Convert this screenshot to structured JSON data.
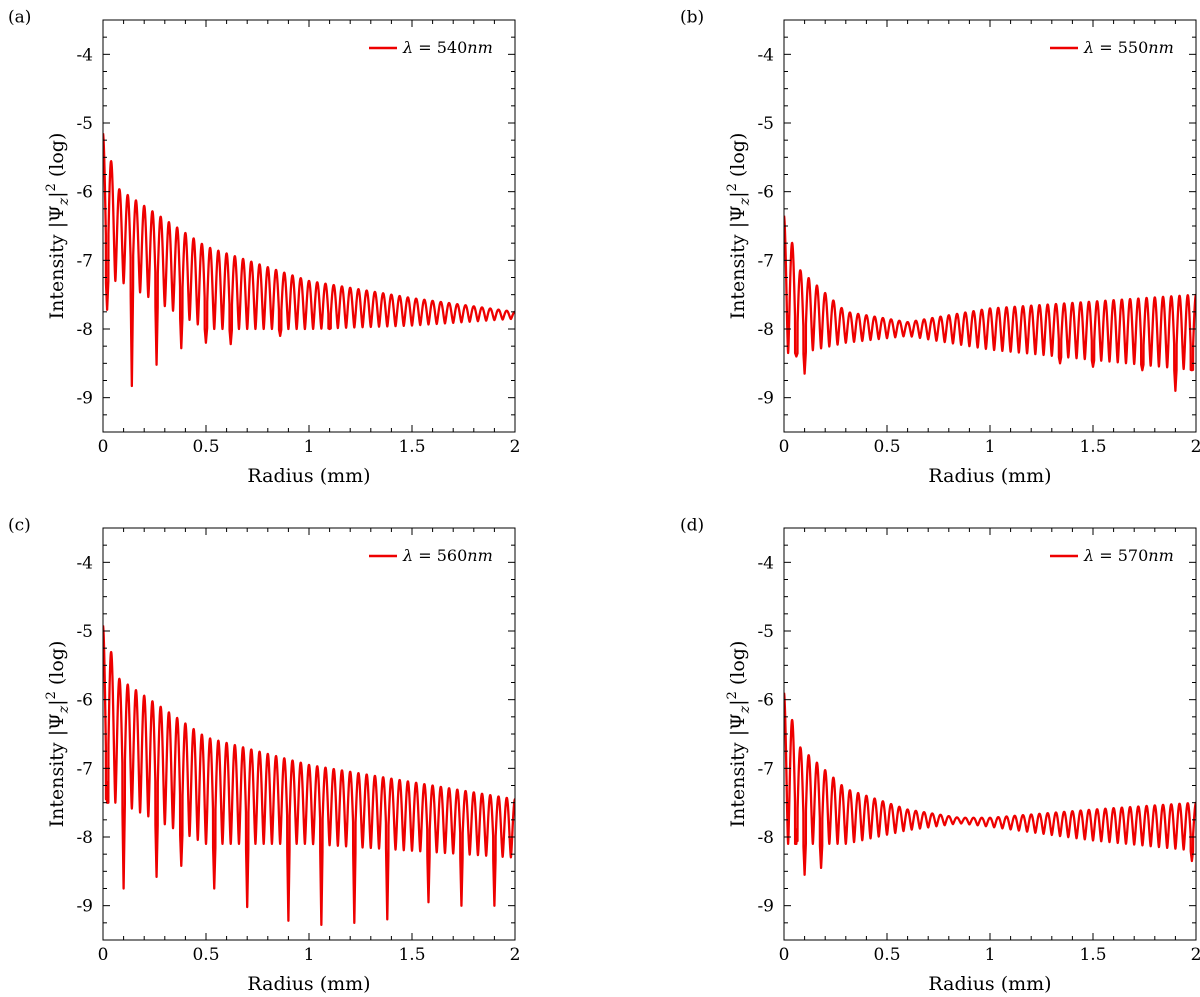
{
  "colors": {
    "series": "#ee0000",
    "axes": "#000000",
    "background": "#ffffff"
  },
  "chart_data": [
    {
      "type": "line",
      "panel": "(a)",
      "xlabel": "Radius (mm)",
      "ylabel": "Intensity |Ψ_z|² (log)",
      "xlim": [
        0,
        2
      ],
      "ylim": [
        -9.5,
        -3.5
      ],
      "xticks": [
        "0",
        "0.5",
        "1",
        "1.5",
        "2"
      ],
      "yticks": [
        "-4",
        "-5",
        "-6",
        "-7",
        "-8",
        "-9"
      ],
      "legend_position": "top-right",
      "series": [
        {
          "name": "λ = 540nm",
          "envelope": {
            "first_peak": [
              0.0,
              -5.15
            ],
            "maxima": [
              [
                0.08,
                -5.97
              ],
              [
                0.5,
                -6.8
              ],
              [
                1.0,
                -7.3
              ],
              [
                1.5,
                -7.55
              ],
              [
                2.0,
                -7.75
              ]
            ],
            "minima": [
              [
                0.08,
                -7.3
              ],
              [
                0.5,
                -8.0
              ],
              [
                1.0,
                -8.0
              ],
              [
                1.5,
                -7.95
              ],
              [
                2.0,
                -7.85
              ]
            ]
          },
          "deep_minima": [
            [
              0.04,
              -7.72
            ],
            [
              0.155,
              -8.83
            ],
            [
              0.26,
              -8.52
            ],
            [
              0.37,
              -8.28
            ],
            [
              0.48,
              -8.2
            ],
            [
              0.64,
              -8.22
            ],
            [
              0.86,
              -8.1
            ],
            [
              1.1,
              -8.0
            ]
          ],
          "fringe_period_mm": 0.04
        }
      ]
    },
    {
      "type": "line",
      "panel": "(b)",
      "xlabel": "Radius (mm)",
      "ylabel": "Intensity |Ψ_z|² (log)",
      "xlim": [
        0,
        2
      ],
      "ylim": [
        -9.5,
        -3.5
      ],
      "xticks": [
        "0",
        "0.5",
        "1",
        "1.5",
        "2"
      ],
      "yticks": [
        "-4",
        "-5",
        "-6",
        "-7",
        "-8",
        "-9"
      ],
      "legend_position": "top-right",
      "series": [
        {
          "name": "λ = 550nm",
          "envelope": {
            "first_peak": [
              0.0,
              -6.35
            ],
            "maxima": [
              [
                0.08,
                -7.15
              ],
              [
                0.3,
                -7.75
              ],
              [
                0.6,
                -7.9
              ],
              [
                1.0,
                -7.7
              ],
              [
                1.5,
                -7.6
              ],
              [
                2.0,
                -7.5
              ]
            ],
            "minima": [
              [
                0.08,
                -8.35
              ],
              [
                0.3,
                -8.2
              ],
              [
                0.6,
                -8.1
              ],
              [
                1.0,
                -8.3
              ],
              [
                1.5,
                -8.45
              ],
              [
                2.0,
                -8.6
              ]
            ]
          },
          "deep_minima": [
            [
              0.05,
              -8.4
            ],
            [
              0.105,
              -8.65
            ],
            [
              1.34,
              -8.5
            ],
            [
              1.5,
              -8.55
            ],
            [
              1.72,
              -8.6
            ],
            [
              1.9,
              -8.9
            ],
            [
              1.98,
              -8.6
            ]
          ],
          "fringe_period_mm": 0.04
        }
      ]
    },
    {
      "type": "line",
      "panel": "(c)",
      "xlabel": "Radius (mm)",
      "ylabel": "Intensity |Ψ_z|² (log)",
      "xlim": [
        0,
        2
      ],
      "ylim": [
        -9.5,
        -3.5
      ],
      "xticks": [
        "0",
        "0.5",
        "1",
        "1.5",
        "2"
      ],
      "yticks": [
        "-4",
        "-5",
        "-6",
        "-7",
        "-8",
        "-9"
      ],
      "legend_position": "top-right",
      "series": [
        {
          "name": "λ = 560nm",
          "envelope": {
            "first_peak": [
              0.0,
              -4.92
            ],
            "maxima": [
              [
                0.08,
                -5.7
              ],
              [
                0.5,
                -6.55
              ],
              [
                1.0,
                -6.95
              ],
              [
                1.5,
                -7.2
              ],
              [
                2.0,
                -7.45
              ]
            ],
            "minima": [
              [
                0.08,
                -7.5
              ],
              [
                0.5,
                -8.1
              ],
              [
                1.0,
                -8.1
              ],
              [
                1.5,
                -8.2
              ],
              [
                2.0,
                -8.3
              ]
            ]
          },
          "deep_minima": [
            [
              0.04,
              -6.9
            ],
            [
              0.1,
              -8.75
            ],
            [
              0.27,
              -8.58
            ],
            [
              0.38,
              -8.42
            ],
            [
              0.55,
              -8.75
            ],
            [
              0.72,
              -9.02
            ],
            [
              0.89,
              -9.22
            ],
            [
              1.06,
              -9.28
            ],
            [
              1.23,
              -9.25
            ],
            [
              1.4,
              -9.2
            ],
            [
              1.57,
              -8.95
            ],
            [
              1.75,
              -9.0
            ],
            [
              1.92,
              -9.0
            ]
          ],
          "fringe_period_mm": 0.04
        }
      ]
    },
    {
      "type": "line",
      "panel": "(d)",
      "xlabel": "Radius (mm)",
      "ylabel": "Intensity |Ψ_z|² (log)",
      "xlim": [
        0,
        2
      ],
      "ylim": [
        -9.5,
        -3.5
      ],
      "xticks": [
        "0",
        "0.5",
        "1",
        "1.5",
        "2"
      ],
      "yticks": [
        "-4",
        "-5",
        "-6",
        "-7",
        "-8",
        "-9"
      ],
      "legend_position": "top-right",
      "series": [
        {
          "name": "λ = 570nm",
          "envelope": {
            "first_peak": [
              0.0,
              -5.9
            ],
            "maxima": [
              [
                0.08,
                -6.7
              ],
              [
                0.3,
                -7.3
              ],
              [
                0.6,
                -7.6
              ],
              [
                0.85,
                -7.72
              ],
              [
                1.0,
                -7.72
              ],
              [
                1.5,
                -7.6
              ],
              [
                2.0,
                -7.5
              ]
            ],
            "minima": [
              [
                0.08,
                -8.1
              ],
              [
                0.3,
                -8.1
              ],
              [
                0.6,
                -7.9
              ],
              [
                0.85,
                -7.8
              ],
              [
                1.0,
                -7.85
              ],
              [
                1.5,
                -8.05
              ],
              [
                2.0,
                -8.2
              ]
            ]
          },
          "deep_minima": [
            [
              0.05,
              -7.6
            ],
            [
              0.1,
              -8.55
            ],
            [
              0.17,
              -8.45
            ],
            [
              1.98,
              -8.35
            ]
          ],
          "fringe_period_mm": 0.04
        }
      ]
    }
  ]
}
